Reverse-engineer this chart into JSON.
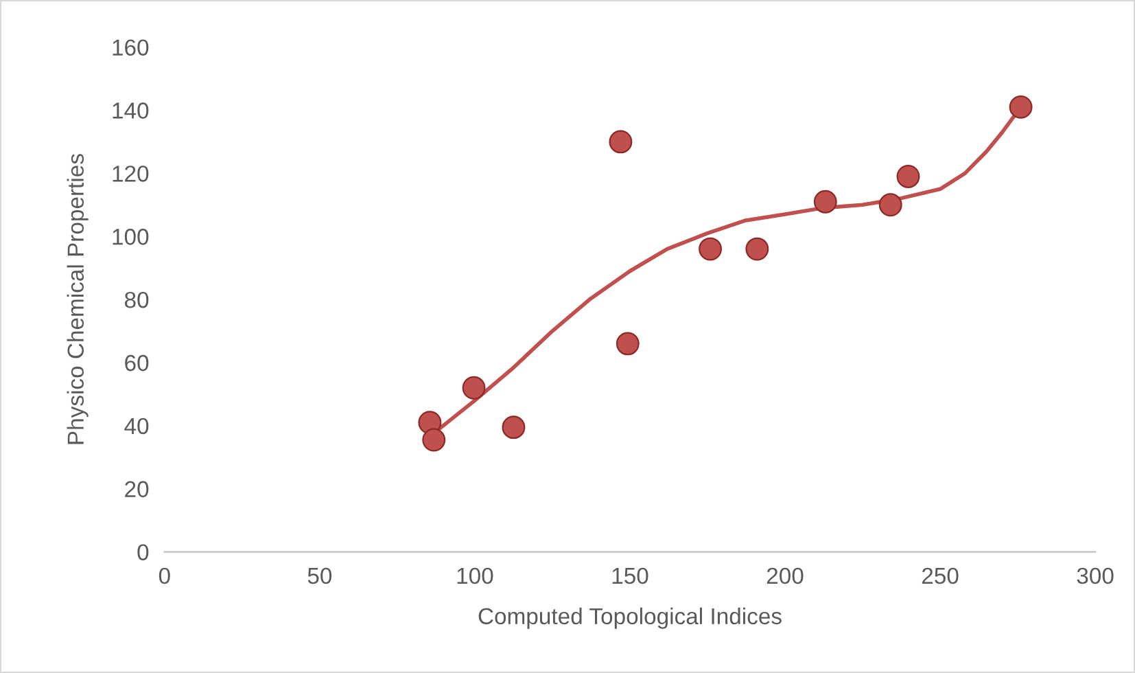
{
  "chart_data": {
    "type": "scatter",
    "xlabel": "Computed Topological Indices",
    "ylabel": "Physico Chemical Properties",
    "xlim": [
      0,
      300
    ],
    "xticks": [
      0,
      50,
      100,
      150,
      200,
      250,
      300
    ],
    "ylim": [
      0,
      160
    ],
    "yticks": [
      0,
      20,
      40,
      60,
      80,
      100,
      120,
      140,
      160
    ],
    "grid": false,
    "legend": false,
    "series": [
      {
        "marker": "circle",
        "color": "#c0504d",
        "x": [
          85.5,
          86.8,
          99.7,
          112.5,
          147,
          149.3,
          175.9,
          191,
          213,
          234,
          239.7,
          276
        ],
        "values": [
          41,
          35.5,
          52,
          39.5,
          130,
          66,
          96,
          96,
          111,
          110,
          119,
          141
        ]
      },
      {
        "type": "line",
        "color": "#c0504d",
        "line_style": "solid",
        "marker": "none",
        "x": [
          86,
          100,
          112,
          125,
          137,
          150,
          162,
          175,
          187,
          200,
          212,
          225,
          237,
          250,
          258,
          265,
          270,
          276
        ],
        "values": [
          37,
          48,
          58,
          70,
          80,
          89,
          96,
          101,
          105,
          107,
          109,
          110,
          112,
          115,
          120,
          127,
          133,
          141
        ]
      }
    ]
  }
}
